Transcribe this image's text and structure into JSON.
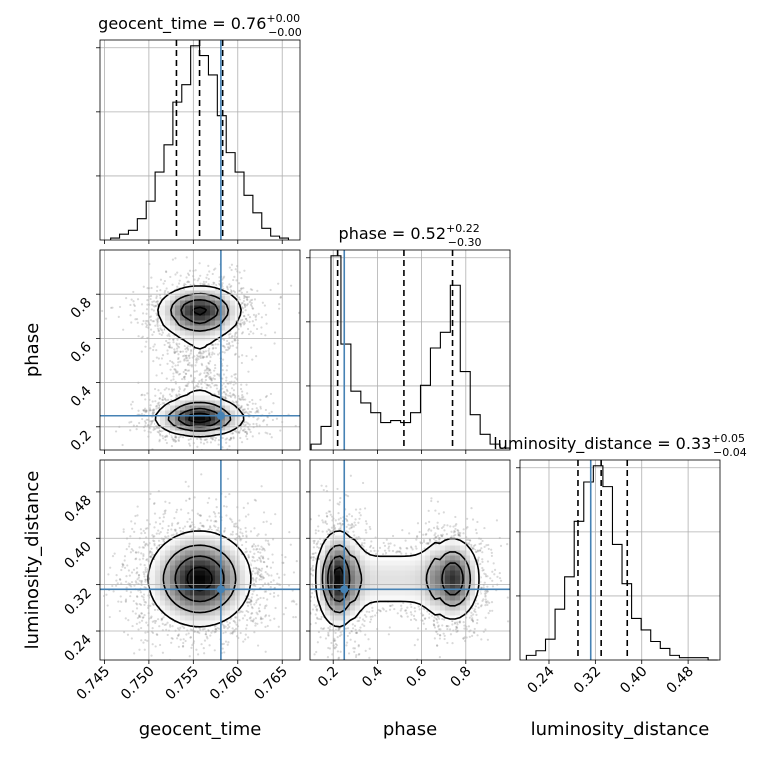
{
  "chart_data": {
    "type": "corner",
    "parameters": [
      "geocent_time",
      "phase",
      "luminosity_distance"
    ],
    "axis_labels": {
      "x": [
        "geocent_time",
        "phase",
        "luminosity_distance"
      ],
      "y": [
        "phase",
        "luminosity_distance"
      ]
    },
    "ranges": {
      "geocent_time": [
        0.7445,
        0.767
      ],
      "phase": [
        0.095,
        1.0
      ],
      "luminosity_distance": [
        0.19,
        0.535
      ]
    },
    "ticks": {
      "geocent_time": [
        0.745,
        0.75,
        0.755,
        0.76,
        0.765
      ],
      "phase": [
        0.2,
        0.4,
        0.6,
        0.8
      ],
      "luminosity_distance": [
        0.24,
        0.32,
        0.4,
        0.48
      ]
    },
    "tick_labels": {
      "geocent_time": [
        "0.745",
        "0.750",
        "0.755",
        "0.760",
        "0.765"
      ],
      "phase": [
        "0.2",
        "0.4",
        "0.6",
        "0.8"
      ],
      "luminosity_distance": [
        "0.24",
        "0.32",
        "0.40",
        "0.48"
      ]
    },
    "truths": {
      "geocent_time": 0.7581,
      "phase": 0.25,
      "luminosity_distance": 0.312
    },
    "titles": [
      {
        "param": "geocent_time",
        "text": "geocent_time = 0.76",
        "plus": "+0.00",
        "minus": "−0.00"
      },
      {
        "param": "phase",
        "text": "phase = 0.52",
        "plus": "+0.22",
        "minus": "−0.30"
      },
      {
        "param": "luminosity_distance",
        "text": "luminosity_distance = 0.33",
        "plus": "+0.05",
        "minus": "−0.04"
      }
    ],
    "quantiles": {
      "geocent_time": [
        0.7531,
        0.7557,
        0.7583
      ],
      "phase": [
        0.22,
        0.52,
        0.74
      ],
      "luminosity_distance": [
        0.29,
        0.33,
        0.375
      ]
    },
    "histograms": {
      "geocent_time": {
        "bin_edges": [
          0.7457,
          0.7467,
          0.7477,
          0.7487,
          0.7497,
          0.7507,
          0.7517,
          0.7527,
          0.7537,
          0.7547,
          0.7557,
          0.7567,
          0.7577,
          0.7587,
          0.7597,
          0.7607,
          0.7617,
          0.7627,
          0.7637,
          0.7647,
          0.7657
        ],
        "counts": [
          1,
          3,
          5,
          11,
          20,
          35,
          49,
          71,
          80,
          100,
          95,
          85,
          64,
          45,
          35,
          23,
          14,
          6,
          2,
          1
        ]
      },
      "phase": {
        "bin_edges": [
          0.1,
          0.145,
          0.19,
          0.235,
          0.28,
          0.325,
          0.37,
          0.415,
          0.46,
          0.505,
          0.55,
          0.595,
          0.64,
          0.685,
          0.73,
          0.775,
          0.82,
          0.865,
          0.91,
          0.955,
          1.0
        ],
        "counts": [
          3,
          12,
          99,
          54,
          30,
          24,
          19,
          14,
          15,
          14,
          19,
          33,
          52,
          60,
          84,
          40,
          18,
          8,
          3,
          1
        ]
      },
      "luminosity_distance": {
        "bin_edges": [
          0.201,
          0.2175,
          0.234,
          0.2505,
          0.267,
          0.2835,
          0.3,
          0.3165,
          0.333,
          0.3495,
          0.366,
          0.3825,
          0.399,
          0.4155,
          0.432,
          0.4485,
          0.465,
          0.4815,
          0.498,
          0.5145,
          0.531
        ],
        "counts": [
          2,
          4,
          9,
          22,
          36,
          60,
          77,
          84,
          75,
          50,
          33,
          18,
          13,
          8,
          5,
          2,
          1,
          1,
          1,
          0
        ]
      }
    },
    "density_blobs": [
      {
        "x": "geocent_time",
        "y": "phase",
        "cx": 0.7557,
        "cy": 0.725,
        "sx": 0.0023,
        "sy": 0.055,
        "w": 1.0
      },
      {
        "x": "geocent_time",
        "y": "phase",
        "cx": 0.7557,
        "cy": 0.24,
        "sx": 0.0024,
        "sy": 0.04,
        "w": 1.1
      },
      {
        "x": "geocent_time",
        "y": "luminosity_distance",
        "cx": 0.7557,
        "cy": 0.33,
        "sx": 0.0028,
        "sy": 0.04,
        "w": 1.0
      },
      {
        "x": "phase",
        "y": "luminosity_distance",
        "cx": 0.225,
        "cy": 0.33,
        "sx": 0.05,
        "sy": 0.04,
        "w": 1.0
      },
      {
        "x": "phase",
        "y": "luminosity_distance",
        "cx": 0.74,
        "cy": 0.33,
        "sx": 0.06,
        "sy": 0.035,
        "w": 0.85
      }
    ],
    "contour_levels": [
      0.12,
      0.35,
      0.62,
      0.88
    ]
  }
}
